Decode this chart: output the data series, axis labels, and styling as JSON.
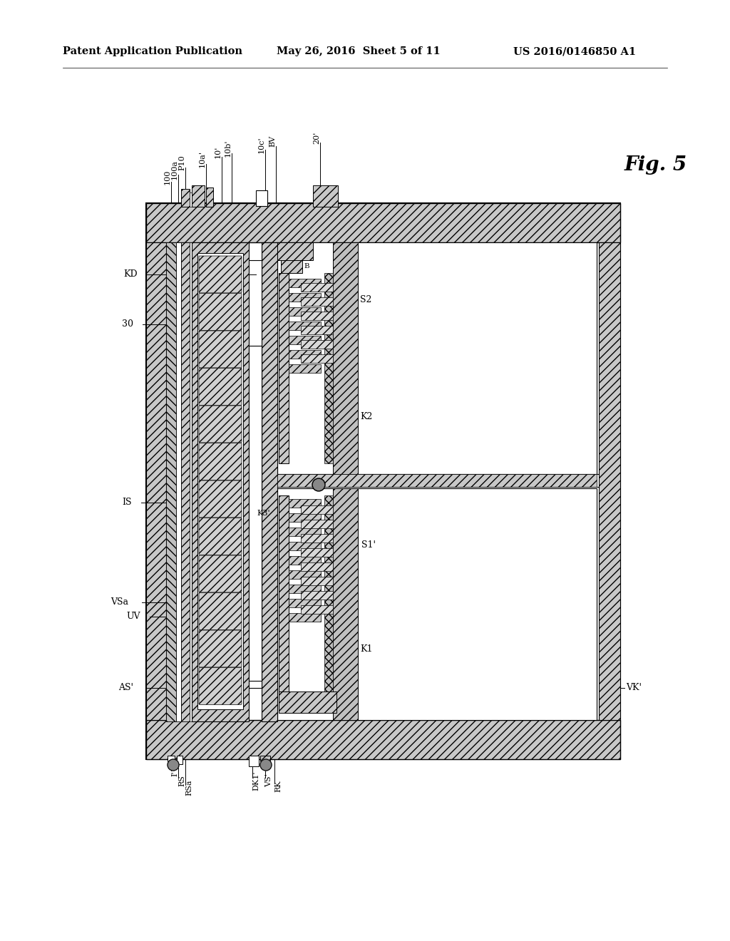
{
  "header_left": "Patent Application Publication",
  "header_mid": "May 26, 2016  Sheet 5 of 11",
  "header_right": "US 2016/0146850 A1",
  "fig_label": "Fig. 5",
  "background": "#ffffff"
}
